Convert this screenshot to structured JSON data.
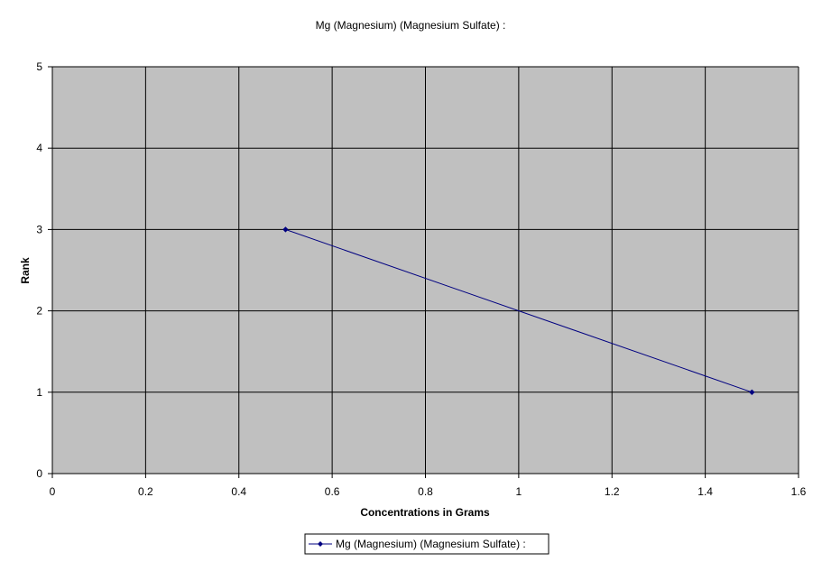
{
  "chart_data": {
    "type": "line",
    "title": "Mg (Magnesium) (Magnesium Sulfate) :",
    "xlabel": "Concentrations in Grams",
    "ylabel": "Rank",
    "xlim": [
      0,
      1.6
    ],
    "ylim": [
      0,
      5
    ],
    "xticks": [
      0,
      0.2,
      0.4,
      0.6,
      0.8,
      1,
      1.2,
      1.4,
      1.6
    ],
    "yticks": [
      0,
      1,
      2,
      3,
      4,
      5
    ],
    "xtick_labels": [
      "0",
      "0.2",
      "0.4",
      "0.6",
      "0.8",
      "1",
      "1.2",
      "1.4",
      "1.6"
    ],
    "ytick_labels": [
      "0",
      "1",
      "2",
      "3",
      "4",
      "5"
    ],
    "grid": true,
    "legend_position": "bottom",
    "series": [
      {
        "name": "Mg (Magnesium) (Magnesium Sulfate) :",
        "x": [
          0.5,
          1.5
        ],
        "y": [
          3,
          1
        ],
        "color": "#000080",
        "marker": "diamond"
      }
    ],
    "colors": {
      "plot_background": "#c0c0c0",
      "gridline": "#000000",
      "series": "#000080"
    }
  }
}
